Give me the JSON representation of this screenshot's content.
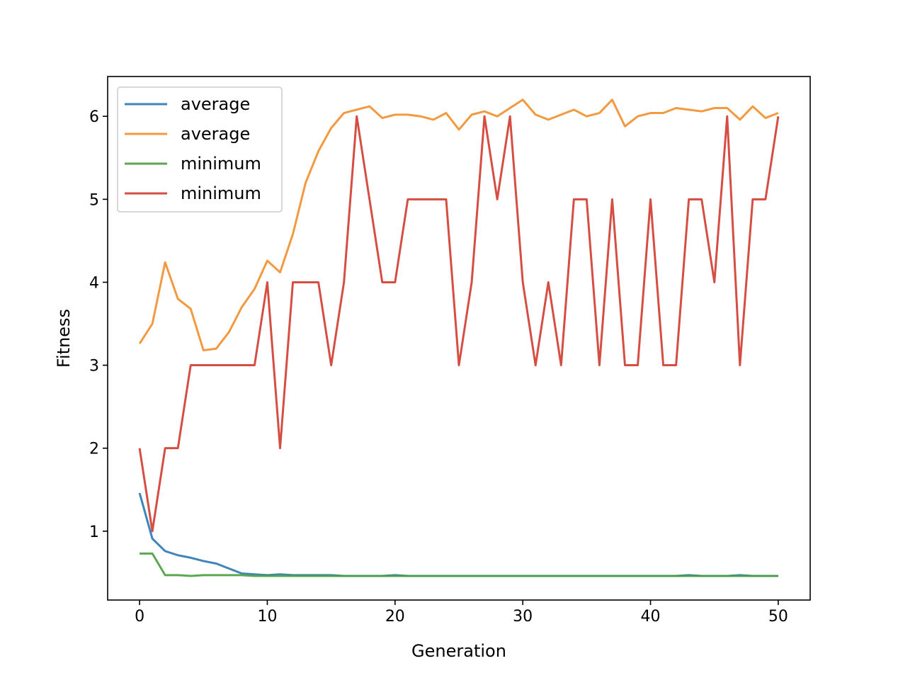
{
  "chart_data": {
    "type": "line",
    "title": "",
    "xlabel": "Generation",
    "ylabel": "Fitness",
    "xlim": [
      -2.5,
      52.5
    ],
    "ylim": [
      0.17,
      6.48
    ],
    "xticks": [
      0,
      10,
      20,
      30,
      40,
      50
    ],
    "yticks": [
      1,
      2,
      3,
      4,
      5,
      6
    ],
    "grid": false,
    "legend_position": "top-left",
    "x": [
      0,
      1,
      2,
      3,
      4,
      5,
      6,
      7,
      8,
      9,
      10,
      11,
      12,
      13,
      14,
      15,
      16,
      17,
      18,
      19,
      20,
      21,
      22,
      23,
      24,
      25,
      26,
      27,
      28,
      29,
      30,
      31,
      32,
      33,
      34,
      35,
      36,
      37,
      38,
      39,
      40,
      41,
      42,
      43,
      44,
      45,
      46,
      47,
      48,
      49,
      50
    ],
    "series": [
      {
        "name": "average",
        "color": "#2a78b5",
        "values": [
          1.46,
          0.91,
          0.76,
          0.71,
          0.68,
          0.64,
          0.61,
          0.55,
          0.49,
          0.48,
          0.47,
          0.48,
          0.47,
          0.47,
          0.47,
          0.47,
          0.46,
          0.46,
          0.46,
          0.46,
          0.47,
          0.46,
          0.46,
          0.46,
          0.46,
          0.46,
          0.46,
          0.46,
          0.46,
          0.46,
          0.46,
          0.46,
          0.46,
          0.46,
          0.46,
          0.46,
          0.46,
          0.46,
          0.46,
          0.46,
          0.46,
          0.46,
          0.46,
          0.47,
          0.46,
          0.46,
          0.46,
          0.47,
          0.46,
          0.46,
          0.46
        ]
      },
      {
        "name": "average",
        "color": "#f28e2b",
        "values": [
          3.26,
          3.5,
          4.24,
          3.8,
          3.68,
          3.18,
          3.2,
          3.4,
          3.7,
          3.92,
          4.26,
          4.12,
          4.58,
          5.2,
          5.58,
          5.86,
          6.04,
          6.08,
          6.12,
          5.98,
          6.02,
          6.02,
          6.0,
          5.96,
          6.04,
          5.84,
          6.02,
          6.06,
          6.0,
          6.1,
          6.2,
          6.02,
          5.96,
          6.02,
          6.08,
          6.0,
          6.04,
          6.2,
          5.88,
          6.0,
          6.04,
          6.04,
          6.1,
          6.08,
          6.06,
          6.1,
          6.1,
          5.96,
          6.12,
          5.98,
          6.04
        ]
      },
      {
        "name": "minimum",
        "color": "#4a9e3e",
        "values": [
          0.73,
          0.73,
          0.47,
          0.47,
          0.46,
          0.47,
          0.47,
          0.47,
          0.47,
          0.46,
          0.46,
          0.46,
          0.46,
          0.46,
          0.46,
          0.46,
          0.46,
          0.46,
          0.46,
          0.46,
          0.46,
          0.46,
          0.46,
          0.46,
          0.46,
          0.46,
          0.46,
          0.46,
          0.46,
          0.46,
          0.46,
          0.46,
          0.46,
          0.46,
          0.46,
          0.46,
          0.46,
          0.46,
          0.46,
          0.46,
          0.46,
          0.46,
          0.46,
          0.46,
          0.46,
          0.46,
          0.46,
          0.46,
          0.46,
          0.46,
          0.46
        ]
      },
      {
        "name": "minimum",
        "color": "#d03b2f",
        "values": [
          2,
          1,
          2,
          2,
          3,
          3,
          3,
          3,
          3,
          3,
          4,
          2,
          4,
          4,
          4,
          3,
          4,
          6,
          5,
          4,
          4,
          5,
          5,
          5,
          5,
          3,
          4,
          6,
          5,
          6,
          4,
          3,
          4,
          3,
          5,
          5,
          3,
          5,
          3,
          3,
          5,
          3,
          3,
          5,
          5,
          4,
          6,
          3,
          5,
          5,
          6
        ]
      }
    ]
  }
}
